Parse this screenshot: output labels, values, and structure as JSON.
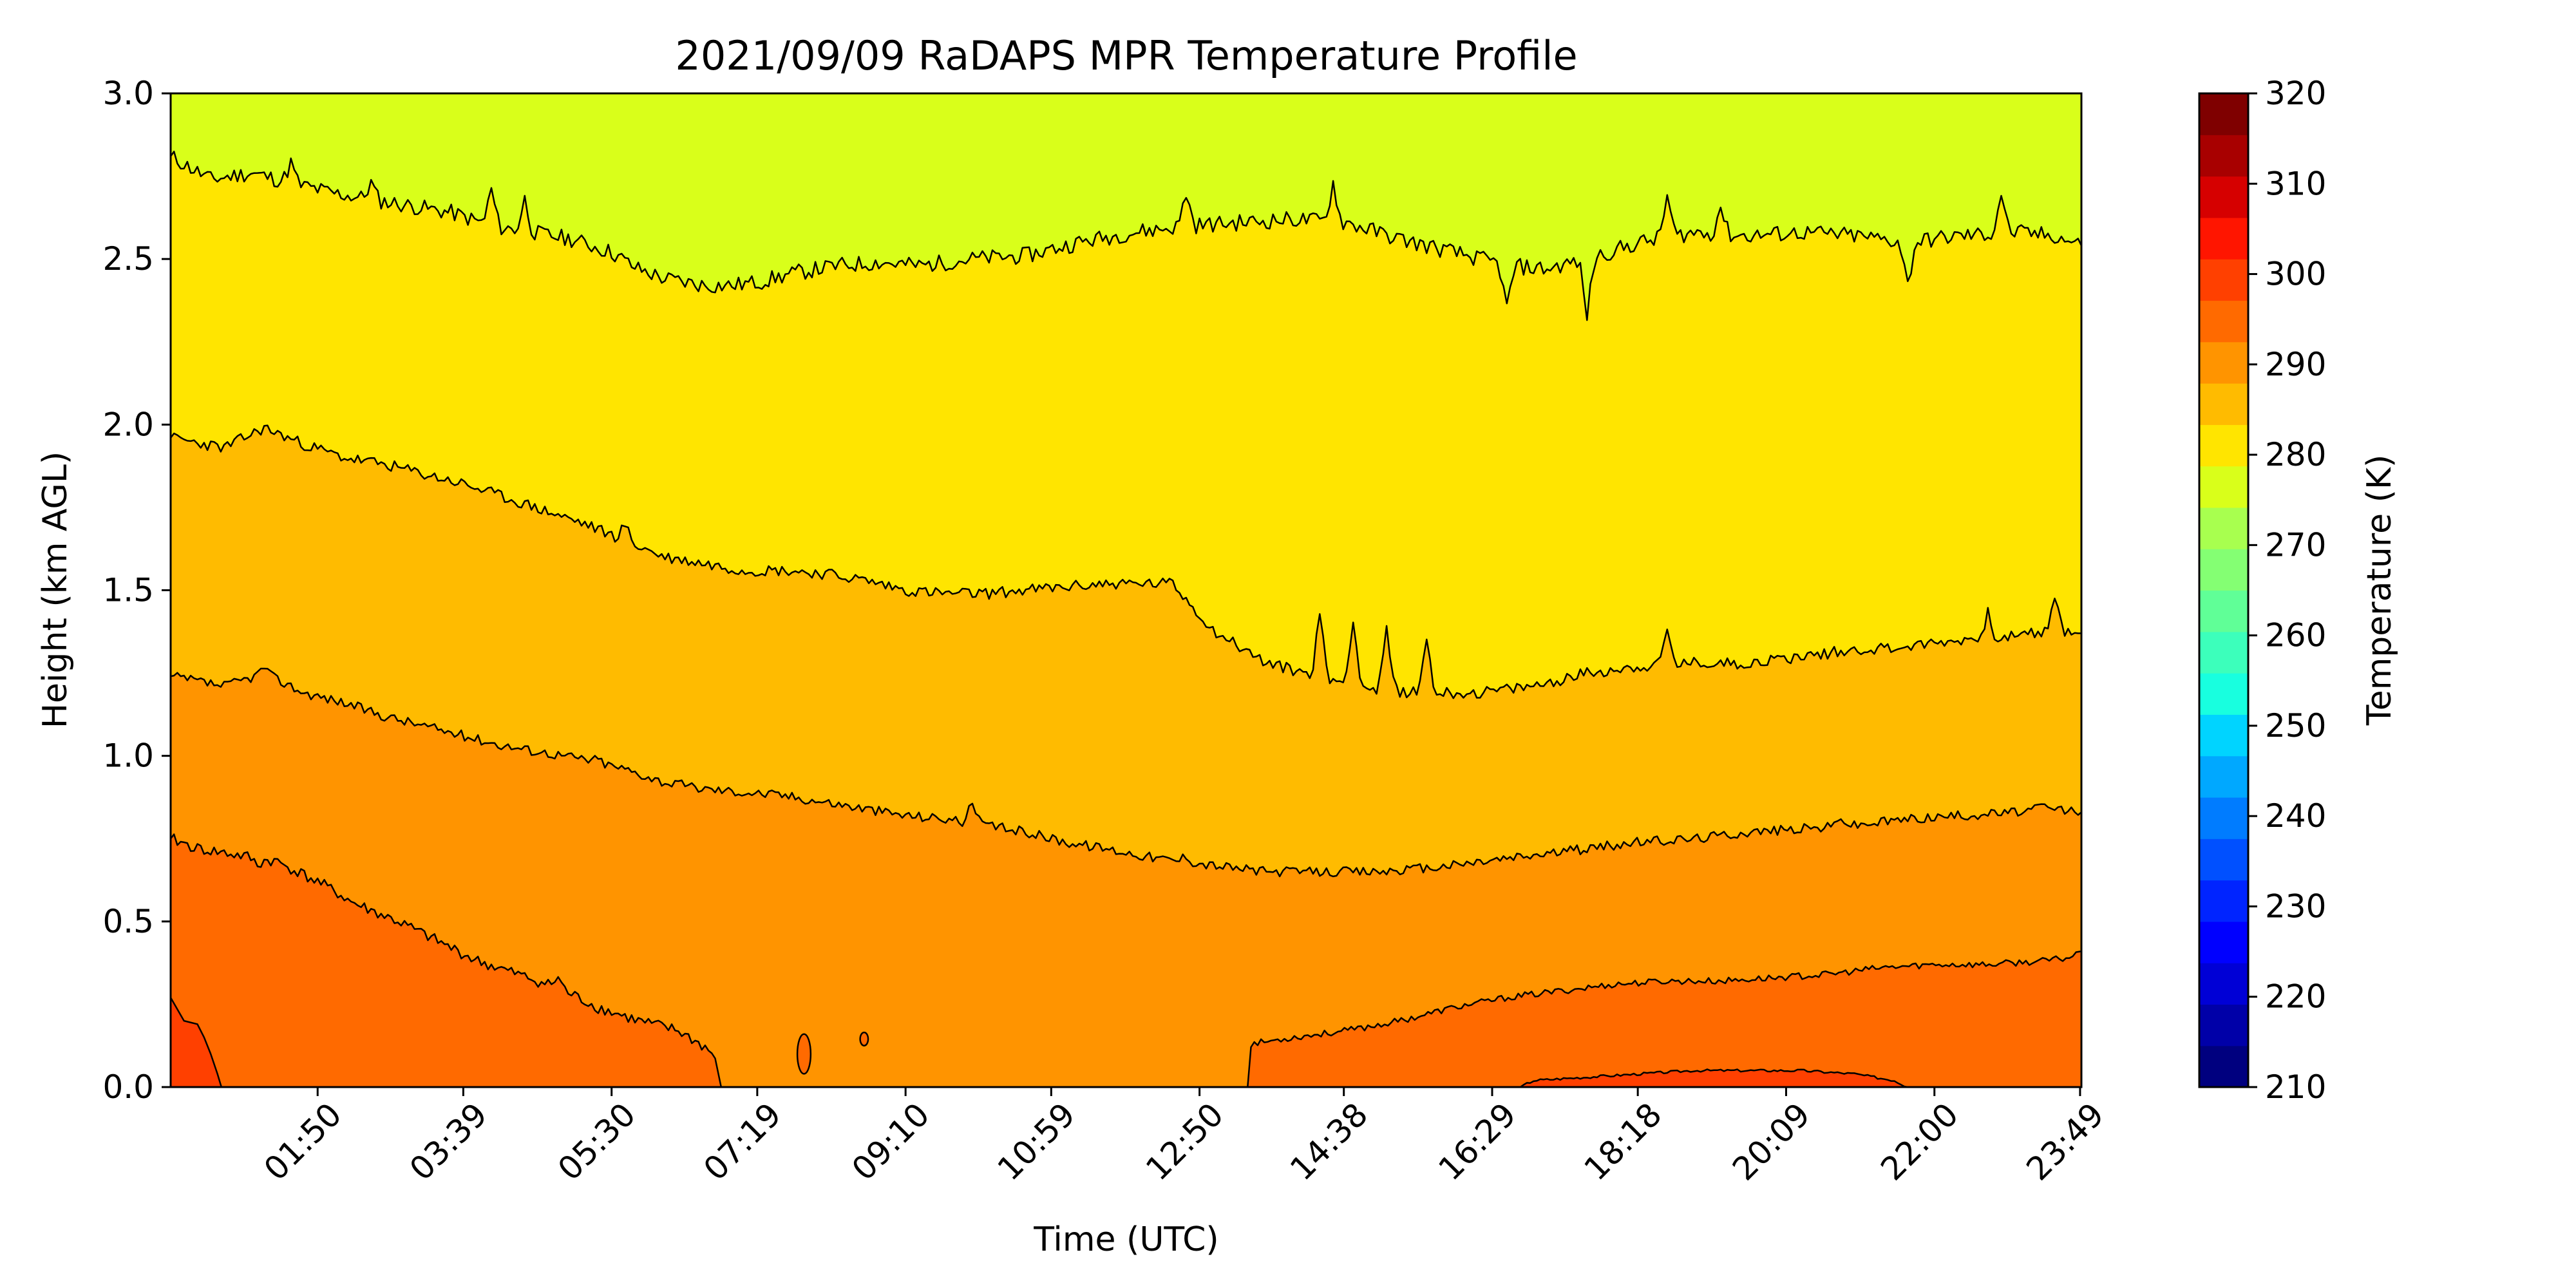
{
  "chart_data": {
    "type": "heatmap",
    "subtype": "filled-contour",
    "title": "2021/09/09 RaDAPS MPR Temperature Profile",
    "xlabel": "Time (UTC)",
    "ylabel": "Height (km AGL)",
    "colorbar_label": "Temperature (K)",
    "x_range_minutes": [
      0,
      1430
    ],
    "x_ticks": [
      {
        "label": "01:50",
        "minute": 110
      },
      {
        "label": "03:39",
        "minute": 219
      },
      {
        "label": "05:30",
        "minute": 330
      },
      {
        "label": "07:19",
        "minute": 439
      },
      {
        "label": "09:10",
        "minute": 550
      },
      {
        "label": "10:59",
        "minute": 659
      },
      {
        "label": "12:50",
        "minute": 770
      },
      {
        "label": "14:38",
        "minute": 878
      },
      {
        "label": "16:29",
        "minute": 989
      },
      {
        "label": "18:18",
        "minute": 1098
      },
      {
        "label": "20:09",
        "minute": 1209
      },
      {
        "label": "22:00",
        "minute": 1320
      },
      {
        "label": "23:49",
        "minute": 1429
      }
    ],
    "ylim": [
      0,
      3
    ],
    "y_ticks": [
      {
        "label": "0.0",
        "value": 0
      },
      {
        "label": "0.5",
        "value": 0.5
      },
      {
        "label": "1.0",
        "value": 1.0
      },
      {
        "label": "1.5",
        "value": 1.5
      },
      {
        "label": "2.0",
        "value": 2.0
      },
      {
        "label": "2.5",
        "value": 2.5
      },
      {
        "label": "3.0",
        "value": 3.0
      }
    ],
    "colorbar": {
      "range": [
        210,
        320
      ],
      "ticks": [
        {
          "label": "210",
          "value": 210
        },
        {
          "label": "220",
          "value": 220
        },
        {
          "label": "230",
          "value": 230
        },
        {
          "label": "240",
          "value": 240
        },
        {
          "label": "250",
          "value": 250
        },
        {
          "label": "260",
          "value": 260
        },
        {
          "label": "270",
          "value": 270
        },
        {
          "label": "280",
          "value": 280
        },
        {
          "label": "290",
          "value": 290
        },
        {
          "label": "300",
          "value": 300
        },
        {
          "label": "310",
          "value": 310
        },
        {
          "label": "320",
          "value": 320
        }
      ],
      "levels": [
        {
          "lo": 210,
          "hi": 215,
          "color": "#00007f"
        },
        {
          "lo": 215,
          "hi": 220,
          "color": "#0000a8"
        },
        {
          "lo": 220,
          "hi": 225,
          "color": "#0000d6"
        },
        {
          "lo": 225,
          "hi": 230,
          "color": "#0000ff"
        },
        {
          "lo": 230,
          "hi": 235,
          "color": "#0024ff"
        },
        {
          "lo": 235,
          "hi": 240,
          "color": "#0050ff"
        },
        {
          "lo": 240,
          "hi": 245,
          "color": "#007cff"
        },
        {
          "lo": 245,
          "hi": 250,
          "color": "#00a8ff"
        },
        {
          "lo": 250,
          "hi": 255,
          "color": "#00d4ff"
        },
        {
          "lo": 255,
          "hi": 260,
          "color": "#18ffdf"
        },
        {
          "lo": 260,
          "hi": 265,
          "color": "#3cffbb"
        },
        {
          "lo": 265,
          "hi": 270,
          "color": "#60ff97"
        },
        {
          "lo": 270,
          "hi": 275,
          "color": "#84ff73"
        },
        {
          "lo": 275,
          "hi": 280,
          "color": "#a8ff4f"
        },
        {
          "lo": 280,
          "hi": 285,
          "color": "#d9ff1a"
        },
        {
          "lo": 285,
          "hi": 290,
          "color": "#ffe500"
        },
        {
          "lo": 290,
          "hi": 295,
          "color": "#ffbb00"
        },
        {
          "lo": 295,
          "hi": 300,
          "color": "#ff9400"
        },
        {
          "lo": 300,
          "hi": 305,
          "color": "#ff6a00"
        },
        {
          "lo": 305,
          "hi": 310,
          "color": "#ff4000"
        },
        {
          "lo": 310,
          "hi": 315,
          "color": "#ff1500"
        },
        {
          "lo": 315,
          "hi": 320,
          "color": "#d60000"
        },
        {
          "lo": 320,
          "hi": 325,
          "color": "#a80000"
        },
        {
          "lo": 325,
          "hi": 330,
          "color": "#7f0000"
        }
      ]
    },
    "bands": [
      {
        "name": "band-280-285",
        "color": "#d9ff1a",
        "lower_contour": "c285",
        "upper": "top"
      },
      {
        "name": "band-285-290",
        "color": "#ffe500",
        "lower_contour": "c290",
        "upper": "c285"
      },
      {
        "name": "band-290-295",
        "color": "#ffbb00",
        "lower_contour": "c295",
        "upper": "c290"
      },
      {
        "name": "band-295-300",
        "color": "#ff9400",
        "lower_contour": "bottom",
        "upper": "c295"
      },
      {
        "name": "band-300-305",
        "color": "#ff6a00"
      },
      {
        "name": "band-305-310",
        "color": "#ff4000"
      }
    ],
    "contours": {
      "c285": {
        "level": 285,
        "points": [
          [
            0,
            2.81
          ],
          [
            30,
            2.74
          ],
          [
            60,
            2.76
          ],
          [
            90,
            2.73
          ],
          [
            120,
            2.7
          ],
          [
            150,
            2.68
          ],
          [
            180,
            2.66
          ],
          [
            210,
            2.64
          ],
          [
            240,
            2.6
          ],
          [
            270,
            2.58
          ],
          [
            300,
            2.56
          ],
          [
            330,
            2.52
          ],
          [
            350,
            2.47
          ],
          [
            370,
            2.44
          ],
          [
            400,
            2.42
          ],
          [
            420,
            2.42
          ],
          [
            440,
            2.43
          ],
          [
            470,
            2.46
          ],
          [
            500,
            2.48
          ],
          [
            530,
            2.49
          ],
          [
            560,
            2.48
          ],
          [
            600,
            2.5
          ],
          [
            640,
            2.51
          ],
          [
            680,
            2.55
          ],
          [
            720,
            2.58
          ],
          [
            760,
            2.6
          ],
          [
            800,
            2.61
          ],
          [
            840,
            2.62
          ],
          [
            880,
            2.61
          ],
          [
            920,
            2.56
          ],
          [
            960,
            2.52
          ],
          [
            1000,
            2.48
          ],
          [
            1030,
            2.47
          ],
          [
            1060,
            2.5
          ],
          [
            1100,
            2.55
          ],
          [
            1140,
            2.58
          ],
          [
            1180,
            2.57
          ],
          [
            1220,
            2.58
          ],
          [
            1260,
            2.57
          ],
          [
            1300,
            2.55
          ],
          [
            1340,
            2.57
          ],
          [
            1380,
            2.58
          ],
          [
            1410,
            2.57
          ],
          [
            1430,
            2.54
          ]
        ],
        "spikes": [
          [
            90,
            2.79
          ],
          [
            150,
            2.73
          ],
          [
            240,
            2.71
          ],
          [
            265,
            2.68
          ],
          [
            345,
            2.48
          ],
          [
            760,
            2.7
          ],
          [
            870,
            2.73
          ],
          [
            1000,
            2.35
          ],
          [
            1060,
            2.33
          ],
          [
            1120,
            2.69
          ],
          [
            1160,
            2.66
          ],
          [
            1300,
            2.42
          ],
          [
            1370,
            2.7
          ]
        ]
      },
      "c290": {
        "level": 290,
        "points": [
          [
            0,
            1.96
          ],
          [
            40,
            1.93
          ],
          [
            70,
            1.99
          ],
          [
            100,
            1.94
          ],
          [
            130,
            1.9
          ],
          [
            160,
            1.88
          ],
          [
            190,
            1.85
          ],
          [
            220,
            1.82
          ],
          [
            250,
            1.78
          ],
          [
            280,
            1.74
          ],
          [
            310,
            1.7
          ],
          [
            340,
            1.65
          ],
          [
            370,
            1.6
          ],
          [
            400,
            1.58
          ],
          [
            430,
            1.56
          ],
          [
            460,
            1.56
          ],
          [
            490,
            1.55
          ],
          [
            520,
            1.53
          ],
          [
            550,
            1.5
          ],
          [
            580,
            1.49
          ],
          [
            610,
            1.49
          ],
          [
            640,
            1.5
          ],
          [
            670,
            1.51
          ],
          [
            700,
            1.52
          ],
          [
            750,
            1.52
          ],
          [
            780,
            1.38
          ],
          [
            820,
            1.28
          ],
          [
            860,
            1.24
          ],
          [
            900,
            1.2
          ],
          [
            940,
            1.19
          ],
          [
            980,
            1.19
          ],
          [
            1020,
            1.21
          ],
          [
            1060,
            1.25
          ],
          [
            1100,
            1.27
          ],
          [
            1140,
            1.28
          ],
          [
            1180,
            1.28
          ],
          [
            1220,
            1.3
          ],
          [
            1260,
            1.32
          ],
          [
            1300,
            1.33
          ],
          [
            1340,
            1.35
          ],
          [
            1380,
            1.36
          ],
          [
            1410,
            1.38
          ],
          [
            1430,
            1.37
          ]
        ],
        "spikes": [
          [
            340,
            1.7
          ],
          [
            860,
            1.43
          ],
          [
            885,
            1.42
          ],
          [
            910,
            1.38
          ],
          [
            940,
            1.36
          ],
          [
            1120,
            1.38
          ],
          [
            1360,
            1.43
          ],
          [
            1410,
            1.48
          ]
        ]
      },
      "c295": {
        "level": 295,
        "points": [
          [
            0,
            1.24
          ],
          [
            40,
            1.21
          ],
          [
            70,
            1.25
          ],
          [
            100,
            1.19
          ],
          [
            130,
            1.16
          ],
          [
            160,
            1.12
          ],
          [
            190,
            1.09
          ],
          [
            220,
            1.06
          ],
          [
            250,
            1.03
          ],
          [
            280,
            1.01
          ],
          [
            310,
            0.99
          ],
          [
            340,
            0.96
          ],
          [
            370,
            0.92
          ],
          [
            400,
            0.9
          ],
          [
            430,
            0.89
          ],
          [
            460,
            0.88
          ],
          [
            490,
            0.86
          ],
          [
            520,
            0.84
          ],
          [
            550,
            0.82
          ],
          [
            580,
            0.81
          ],
          [
            610,
            0.79
          ],
          [
            640,
            0.77
          ],
          [
            670,
            0.74
          ],
          [
            700,
            0.72
          ],
          [
            740,
            0.69
          ],
          [
            780,
            0.67
          ],
          [
            820,
            0.65
          ],
          [
            860,
            0.65
          ],
          [
            900,
            0.65
          ],
          [
            940,
            0.66
          ],
          [
            980,
            0.68
          ],
          [
            1020,
            0.7
          ],
          [
            1060,
            0.72
          ],
          [
            1100,
            0.74
          ],
          [
            1140,
            0.75
          ],
          [
            1180,
            0.77
          ],
          [
            1220,
            0.78
          ],
          [
            1260,
            0.79
          ],
          [
            1300,
            0.81
          ],
          [
            1340,
            0.82
          ],
          [
            1380,
            0.83
          ],
          [
            1410,
            0.84
          ],
          [
            1430,
            0.83
          ]
        ],
        "spikes": [
          [
            70,
            1.27
          ],
          [
            320,
            0.99
          ],
          [
            600,
            0.86
          ],
          [
            760,
            0.7
          ],
          [
            1250,
            0.82
          ],
          [
            1400,
            0.85
          ]
        ]
      },
      "c300": {
        "level": 300,
        "left": [
          [
            0,
            0.75
          ],
          [
            20,
            0.72
          ],
          [
            50,
            0.7
          ],
          [
            80,
            0.68
          ],
          [
            110,
            0.62
          ],
          [
            140,
            0.55
          ],
          [
            170,
            0.5
          ],
          [
            200,
            0.44
          ],
          [
            230,
            0.38
          ],
          [
            260,
            0.34
          ],
          [
            290,
            0.3
          ],
          [
            320,
            0.24
          ],
          [
            350,
            0.2
          ],
          [
            380,
            0.17
          ],
          [
            400,
            0.12
          ],
          [
            410,
            0.08
          ],
          [
            412,
            0.0
          ]
        ],
        "left_spikes": [
          [
            65,
            0.67
          ],
          [
            135,
            0.56
          ],
          [
            180,
            0.48
          ],
          [
            290,
            0.33
          ]
        ],
        "right": [
          [
            806,
            0.0
          ],
          [
            800,
            0.06
          ],
          [
            808,
            0.13
          ],
          [
            840,
            0.15
          ],
          [
            880,
            0.17
          ],
          [
            920,
            0.2
          ],
          [
            960,
            0.24
          ],
          [
            1000,
            0.27
          ],
          [
            1040,
            0.29
          ],
          [
            1080,
            0.31
          ],
          [
            1120,
            0.32
          ],
          [
            1160,
            0.32
          ],
          [
            1200,
            0.33
          ],
          [
            1240,
            0.34
          ],
          [
            1280,
            0.36
          ],
          [
            1320,
            0.37
          ],
          [
            1360,
            0.37
          ],
          [
            1400,
            0.38
          ],
          [
            1420,
            0.39
          ],
          [
            1430,
            0.41
          ]
        ],
        "islands": [
          [
            474,
            0.1,
            5,
            0.06
          ],
          [
            519,
            0.145,
            3,
            0.02
          ]
        ]
      },
      "c305": {
        "level": 305,
        "left": [
          [
            0,
            0.27
          ],
          [
            10,
            0.2
          ],
          [
            20,
            0.19
          ],
          [
            25,
            0.15
          ],
          [
            30,
            0.1
          ],
          [
            35,
            0.04
          ],
          [
            38,
            0.0
          ]
        ],
        "right": [
          [
            1010,
            0.0
          ],
          [
            1020,
            0.02
          ],
          [
            1060,
            0.03
          ],
          [
            1100,
            0.04
          ],
          [
            1140,
            0.05
          ],
          [
            1180,
            0.05
          ],
          [
            1220,
            0.05
          ],
          [
            1260,
            0.04
          ],
          [
            1290,
            0.02
          ],
          [
            1300,
            0.0
          ]
        ]
      }
    }
  }
}
